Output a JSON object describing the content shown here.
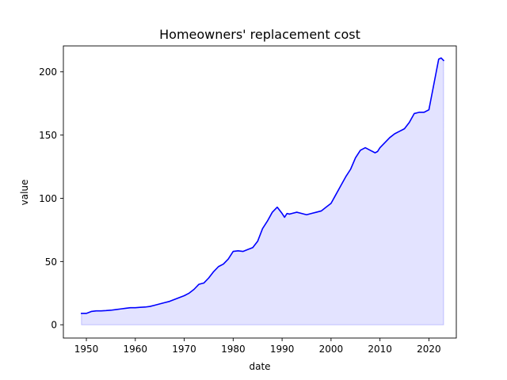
{
  "chart_data": {
    "type": "area",
    "title": "Homeowners' replacement cost",
    "xlabel": "date",
    "ylabel": "value",
    "xlim": [
      1945.3,
      2025.6
    ],
    "ylim": [
      -10.5,
      220.5
    ],
    "x_ticks": [
      1950,
      1960,
      1970,
      1980,
      1990,
      2000,
      2010,
      2020
    ],
    "y_ticks": [
      0,
      50,
      100,
      150,
      200
    ],
    "grid": false,
    "colors": {
      "line": "#0000ff",
      "fill": "#0000ff",
      "fill_opacity": 0.11
    },
    "series": [
      {
        "x": [
          1949.0,
          1950.0,
          1951.0,
          1952.0,
          1953.0,
          1954.0,
          1955.0,
          1956.0,
          1957.0,
          1958.0,
          1959.0,
          1960.0,
          1961.0,
          1962.0,
          1963.0,
          1964.0,
          1965.0,
          1966.0,
          1967.0,
          1968.0,
          1969.0,
          1970.0,
          1971.0,
          1972.0,
          1973.0,
          1974.0,
          1975.0,
          1976.0,
          1977.0,
          1978.0,
          1979.0,
          1980.0,
          1981.0,
          1982.0,
          1983.0,
          1984.0,
          1985.0,
          1986.0,
          1987.0,
          1988.0,
          1989.0,
          1990.0,
          1990.5,
          1991.0,
          1991.5,
          1992.0,
          1993.0,
          1994.0,
          1995.0,
          1996.0,
          1997.0,
          1998.0,
          1999.0,
          2000.0,
          2001.0,
          2002.0,
          2003.0,
          2004.0,
          2005.0,
          2006.0,
          2007.0,
          2008.0,
          2009.0,
          2009.5,
          2010.0,
          2011.0,
          2012.0,
          2013.0,
          2014.0,
          2015.0,
          2016.0,
          2017.0,
          2018.0,
          2019.0,
          2020.0,
          2021.0,
          2021.5,
          2022.0,
          2022.5,
          2023.0
        ],
        "y": [
          9,
          9,
          10.5,
          11,
          11,
          11.2,
          11.5,
          12,
          12.5,
          13,
          13.5,
          13.5,
          13.8,
          14,
          14.5,
          15.5,
          16.5,
          17.5,
          18.5,
          20,
          21.5,
          23,
          25,
          28,
          32,
          33,
          37,
          42,
          46,
          48,
          52,
          58,
          58.5,
          58,
          59.5,
          61,
          66,
          76,
          82,
          89,
          93,
          88,
          85,
          88,
          87.5,
          88,
          89,
          88,
          87,
          88,
          89,
          90,
          93,
          96,
          103,
          110,
          117,
          123,
          132,
          138,
          140,
          138,
          136,
          137,
          140,
          144,
          148,
          151,
          153,
          155,
          160,
          167,
          168,
          168,
          170,
          190,
          200,
          210,
          211,
          209
        ]
      }
    ]
  }
}
